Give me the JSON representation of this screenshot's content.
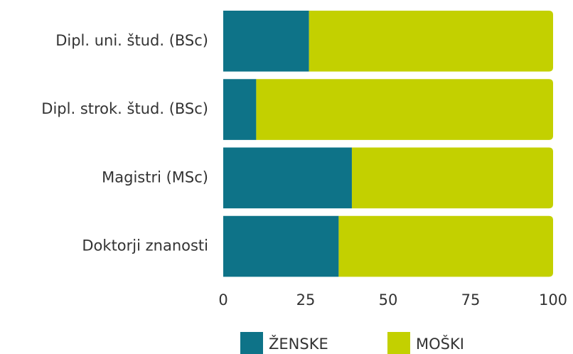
{
  "chart_data": {
    "type": "bar",
    "orientation": "horizontal",
    "stacked": true,
    "categories": [
      "Dipl. uni. štud. (BSc)",
      "Dipl. strok. štud. (BSc)",
      "Magistri (MSc)",
      "Doktorji znanosti"
    ],
    "series": [
      {
        "name": "ŽENSKE",
        "color": "#0e7388",
        "values": [
          26,
          10,
          39,
          35
        ]
      },
      {
        "name": "MOŠKI",
        "color": "#c3d000",
        "values": [
          74,
          90,
          61,
          65
        ]
      }
    ],
    "xlim": [
      0,
      100
    ],
    "xticks": [
      0,
      25,
      50,
      75,
      100
    ],
    "legend": "bottom"
  }
}
